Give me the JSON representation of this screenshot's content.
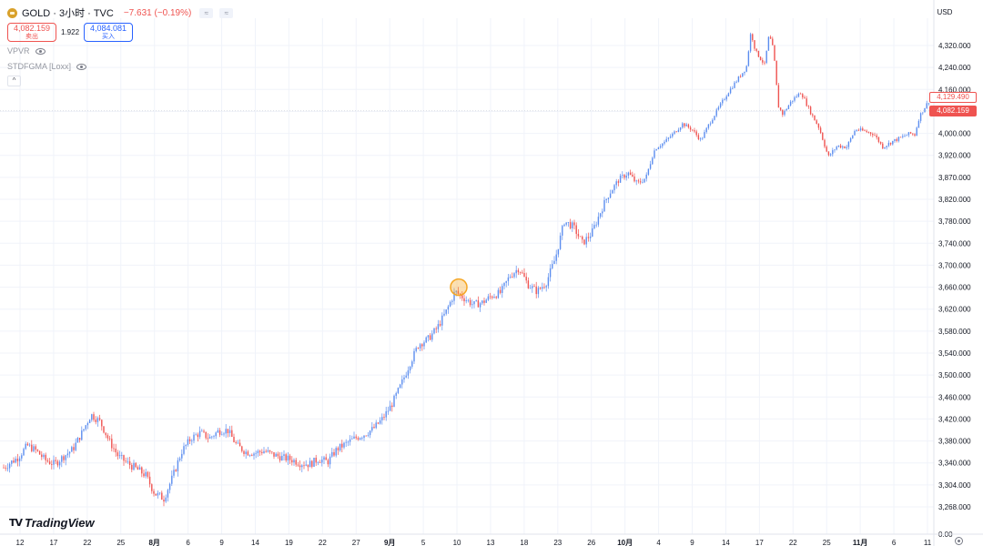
{
  "header": {
    "symbol": "GOLD · 3小时 · TVC",
    "change": "−7.631 (−0.19%)",
    "btn_a": "≈",
    "btn_b": "≈",
    "sell_price": "4,082.159",
    "sell_label": "卖出",
    "spread": "1.922",
    "buy_price": "4,084.081",
    "buy_label": "买入"
  },
  "indicators": [
    {
      "name": "VPVR"
    },
    {
      "name": "STDFGMA [Loxx]"
    }
  ],
  "collapse_icon": "^",
  "currency": "USD",
  "last_price": "4,129.490",
  "sell_line_price": "4,082.159",
  "brand": {
    "mark": "TV",
    "name": "TradingView"
  },
  "colors": {
    "up": "#5b8def",
    "down": "#ef5350",
    "marker": "#f5a623",
    "grid": "#f0f3fa"
  },
  "icons": [
    "gold-logo-icon",
    "eye-icon",
    "chevron-up-icon",
    "gear-icon"
  ],
  "chart_data": {
    "type": "candlestick",
    "ylim": [
      3240,
      4375
    ],
    "y_ticks": [
      3268,
      3304,
      3340,
      3380,
      3420,
      3460,
      3500,
      3540,
      3580,
      3620,
      3660,
      3700,
      3740,
      3780,
      3820,
      3870,
      3920,
      4000,
      4080,
      4160,
      4240,
      4320
    ],
    "y_tick_labels": [
      "3,268.000",
      "3,304.000",
      "3,340.000",
      "3,380.000",
      "3,420.000",
      "3,460.000",
      "3,500.000",
      "3,540.000",
      "3,580.000",
      "3,620.000",
      "3,660.000",
      "3,700.000",
      "3,740.000",
      "3,780.000",
      "3,820.000",
      "3,870.000",
      "3,920.000",
      "4,000.000",
      "4,080.000",
      "4,160.000",
      "4,240.000",
      "4,320.000"
    ],
    "x_ticks": [
      "12",
      "17",
      "22",
      "25",
      "8月",
      "6",
      "9",
      "14",
      "19",
      "22",
      "27",
      "9月",
      "5",
      "10",
      "13",
      "18",
      "23",
      "26",
      "10月",
      "4",
      "9",
      "14",
      "17",
      "22",
      "25",
      "11月",
      "6",
      "11"
    ],
    "x_tick_major": [
      false,
      false,
      false,
      false,
      true,
      false,
      false,
      false,
      false,
      false,
      false,
      true,
      false,
      false,
      false,
      false,
      false,
      false,
      true,
      false,
      false,
      false,
      false,
      false,
      false,
      true,
      false,
      false
    ],
    "bottom_axis_label": "0.00",
    "path": [
      [
        0,
        3328
      ],
      [
        20,
        3350
      ],
      [
        30,
        3372
      ],
      [
        40,
        3362
      ],
      [
        50,
        3345
      ],
      [
        60,
        3338
      ],
      [
        70,
        3352
      ],
      [
        80,
        3365
      ],
      [
        90,
        3395
      ],
      [
        100,
        3428
      ],
      [
        110,
        3415
      ],
      [
        120,
        3380
      ],
      [
        130,
        3352
      ],
      [
        140,
        3340
      ],
      [
        150,
        3330
      ],
      [
        160,
        3320
      ],
      [
        170,
        3290
      ],
      [
        180,
        3282
      ],
      [
        190,
        3318
      ],
      [
        200,
        3362
      ],
      [
        210,
        3385
      ],
      [
        220,
        3395
      ],
      [
        230,
        3385
      ],
      [
        240,
        3398
      ],
      [
        250,
        3400
      ],
      [
        260,
        3372
      ],
      [
        270,
        3360
      ],
      [
        280,
        3358
      ],
      [
        290,
        3362
      ],
      [
        300,
        3355
      ],
      [
        310,
        3350
      ],
      [
        320,
        3346
      ],
      [
        330,
        3340
      ],
      [
        340,
        3338
      ],
      [
        350,
        3347
      ],
      [
        360,
        3342
      ],
      [
        370,
        3365
      ],
      [
        380,
        3375
      ],
      [
        390,
        3385
      ],
      [
        400,
        3392
      ],
      [
        410,
        3402
      ],
      [
        420,
        3420
      ],
      [
        430,
        3445
      ],
      [
        440,
        3480
      ],
      [
        450,
        3520
      ],
      [
        460,
        3556
      ],
      [
        470,
        3565
      ],
      [
        480,
        3585
      ],
      [
        490,
        3615
      ],
      [
        500,
        3652
      ],
      [
        510,
        3640
      ],
      [
        520,
        3628
      ],
      [
        530,
        3632
      ],
      [
        540,
        3644
      ],
      [
        550,
        3650
      ],
      [
        560,
        3680
      ],
      [
        570,
        3695
      ],
      [
        580,
        3665
      ],
      [
        590,
        3652
      ],
      [
        600,
        3668
      ],
      [
        610,
        3712
      ],
      [
        620,
        3780
      ],
      [
        630,
        3770
      ],
      [
        640,
        3740
      ],
      [
        650,
        3758
      ],
      [
        660,
        3798
      ],
      [
        670,
        3835
      ],
      [
        680,
        3865
      ],
      [
        690,
        3880
      ],
      [
        700,
        3855
      ],
      [
        710,
        3870
      ],
      [
        720,
        3945
      ],
      [
        730,
        3968
      ],
      [
        740,
        4000
      ],
      [
        750,
        4035
      ],
      [
        760,
        4015
      ],
      [
        770,
        3975
      ],
      [
        780,
        4040
      ],
      [
        790,
        4095
      ],
      [
        800,
        4150
      ],
      [
        810,
        4195
      ],
      [
        820,
        4240
      ],
      [
        825,
        4370
      ],
      [
        830,
        4300
      ],
      [
        840,
        4250
      ],
      [
        845,
        4360
      ],
      [
        850,
        4300
      ],
      [
        855,
        4100
      ],
      [
        860,
        4070
      ],
      [
        870,
        4120
      ],
      [
        880,
        4150
      ],
      [
        890,
        4080
      ],
      [
        900,
        4020
      ],
      [
        910,
        3915
      ],
      [
        920,
        3955
      ],
      [
        930,
        3950
      ],
      [
        940,
        4015
      ],
      [
        950,
        4008
      ],
      [
        960,
        3998
      ],
      [
        970,
        3950
      ],
      [
        980,
        3970
      ],
      [
        990,
        3985
      ],
      [
        1000,
        4000
      ],
      [
        1005,
        3995
      ],
      [
        1010,
        4060
      ],
      [
        1015,
        4090
      ],
      [
        1020,
        4115
      ],
      [
        1024,
        4129
      ]
    ],
    "marker": {
      "x": 504,
      "y": 3660
    }
  }
}
